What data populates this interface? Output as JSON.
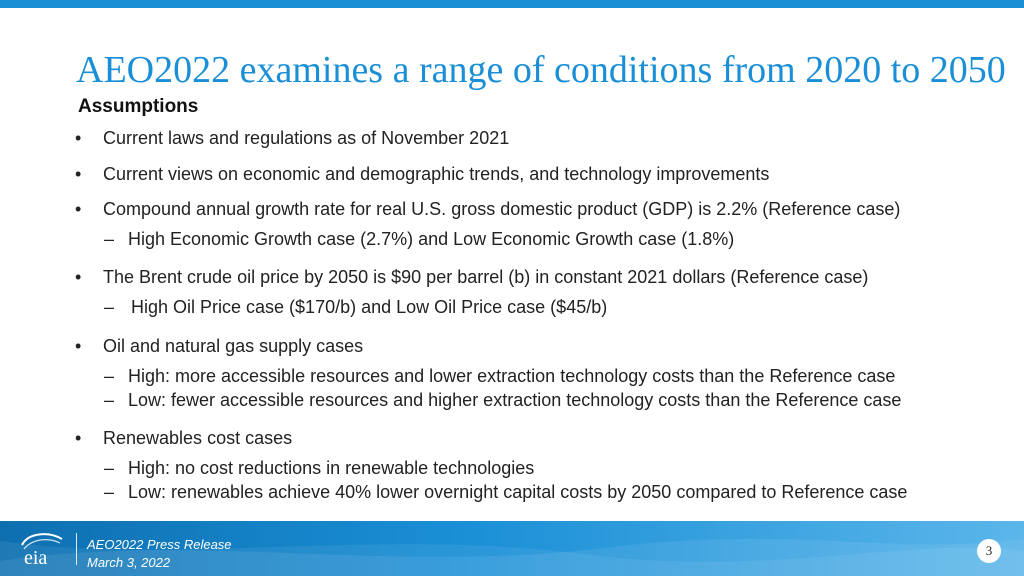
{
  "slide": {
    "title": "AEO2022 examines a range of conditions from 2020 to 2050",
    "subtitle": "Assumptions",
    "bullet_symbol": "•",
    "dash_symbol": "–",
    "items": [
      {
        "text": "Current laws and regulations as of November 2021"
      },
      {
        "text": "Current views on economic and demographic trends, and technology improvements"
      },
      {
        "text": "Compound annual growth rate for real U.S. gross domestic product (GDP) is 2.2% (Reference case)",
        "sub": [
          "High Economic Growth case (2.7%) and Low Economic Growth case (1.8%)"
        ]
      },
      {
        "text": "The Brent crude oil price by 2050 is $90 per barrel (b) in constant 2021 dollars (Reference case)",
        "sub": [
          "High Oil Price case ($170/b) and Low Oil Price case ($45/b)"
        ]
      },
      {
        "text": "Oil and natural gas supply cases",
        "sub": [
          "High: more accessible resources and lower extraction technology costs than the Reference case",
          "Low: fewer accessible resources and higher extraction technology costs than the Reference case"
        ]
      },
      {
        "text": "Renewables cost cases",
        "sub": [
          "High: no cost reductions in renewable technologies",
          "Low: renewables achieve 40% lower overnight capital costs by 2050 compared to Reference case"
        ]
      }
    ]
  },
  "footer": {
    "logo_text": "eia",
    "line1": "AEO2022 Press Release",
    "line2": "March 3, 2022",
    "page_number": "3"
  },
  "colors": {
    "accent": "#1a8fd6",
    "footer_dark": "#0e6fb0",
    "footer_light": "#5bb6ea"
  }
}
